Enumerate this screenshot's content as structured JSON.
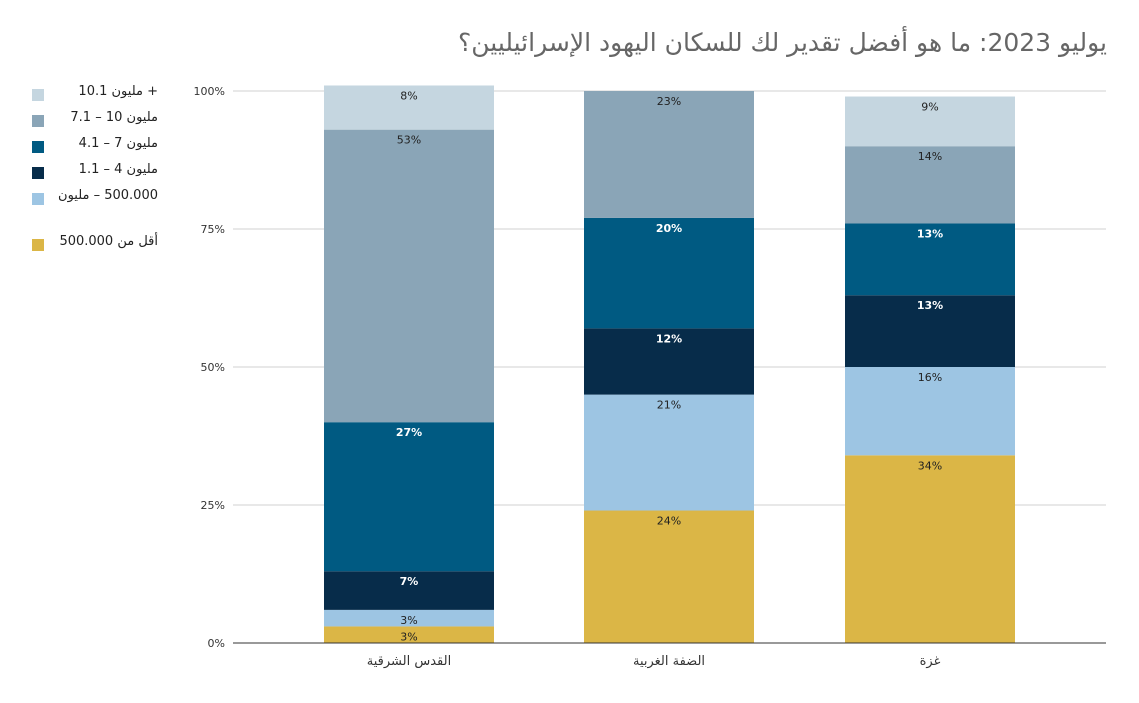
{
  "title": "يوليو 2023: ما هو أفضل تقدير لك للسكان اليهود الإسرائيليين؟",
  "legend": [
    {
      "label": "+ مليون 10.1",
      "color": "#c5d6e0"
    },
    {
      "label": "مليون 10 – 7.1",
      "color": "#8aa5b7"
    },
    {
      "label": "مليون 7 – 4.1",
      "color": "#005a82"
    },
    {
      "label": "مليون 4 – 1.1",
      "color": "#072c4a"
    },
    {
      "label": "500.000 – مليون",
      "color": "#9dc5e3"
    },
    {
      "label": "أقل من 500.000",
      "color": "#dbb646"
    }
  ],
  "chart_data": {
    "type": "bar",
    "stacked": true,
    "title": "يوليو 2023: ما هو أفضل تقدير لك للسكان اليهود الإسرائيليين؟",
    "categories": [
      "القدس الشرقية",
      "الضفة الغربية",
      "غزة"
    ],
    "y_ticks": [
      "0%",
      "25%",
      "50%",
      "75%",
      "100%"
    ],
    "ylim": [
      0,
      100
    ],
    "grid": true,
    "legend_position": "left",
    "series": [
      {
        "name": "أقل من 500.000",
        "color": "#dbb646",
        "label_color": "#222222",
        "bold": false,
        "values": [
          3,
          24,
          34
        ],
        "labels": [
          "3%",
          "24%",
          "34%"
        ]
      },
      {
        "name": "500.000 – مليون",
        "color": "#9dc5e3",
        "label_color": "#222222",
        "bold": false,
        "values": [
          3,
          21,
          16
        ],
        "labels": [
          "3%",
          "21%",
          "16%"
        ]
      },
      {
        "name": "مليون 4 – 1.1",
        "color": "#072c4a",
        "label_color": "#ffffff",
        "bold": true,
        "values": [
          7,
          12,
          13
        ],
        "labels": [
          "7%",
          "12%",
          "13%"
        ]
      },
      {
        "name": "مليون 7 – 4.1",
        "color": "#005a82",
        "label_color": "#ffffff",
        "bold": true,
        "values": [
          27,
          20,
          13
        ],
        "labels": [
          "27%",
          "20%",
          "13%"
        ]
      },
      {
        "name": "مليون 10 – 7.1",
        "color": "#8aa5b7",
        "label_color": "#222222",
        "bold": false,
        "values": [
          53,
          23,
          14
        ],
        "labels": [
          "53%",
          "23%",
          "14%"
        ]
      },
      {
        "name": "+ مليون 10.1",
        "color": "#c5d6e0",
        "label_color": "#222222",
        "bold": false,
        "values": [
          8,
          0,
          9
        ],
        "labels": [
          "8%",
          "",
          "9%"
        ]
      }
    ]
  }
}
